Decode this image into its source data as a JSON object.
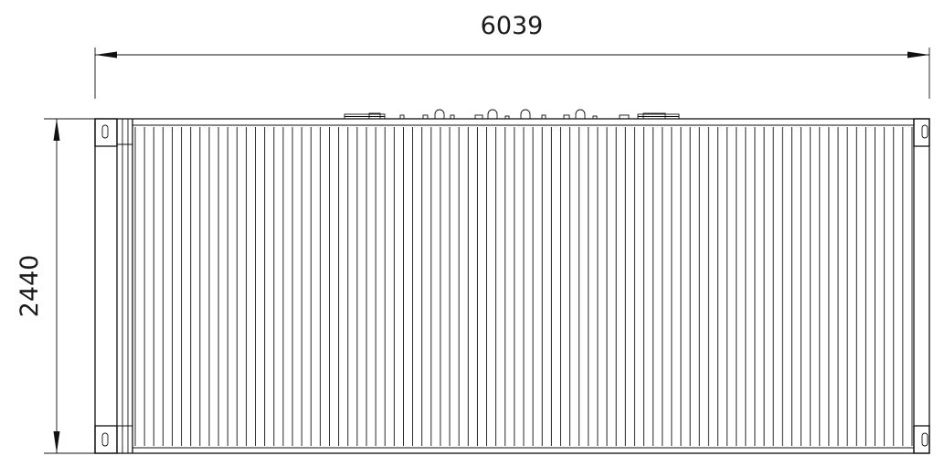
{
  "drawing": {
    "width_dimension": "6039",
    "height_dimension": "2440",
    "corrugation_count": 84
  }
}
